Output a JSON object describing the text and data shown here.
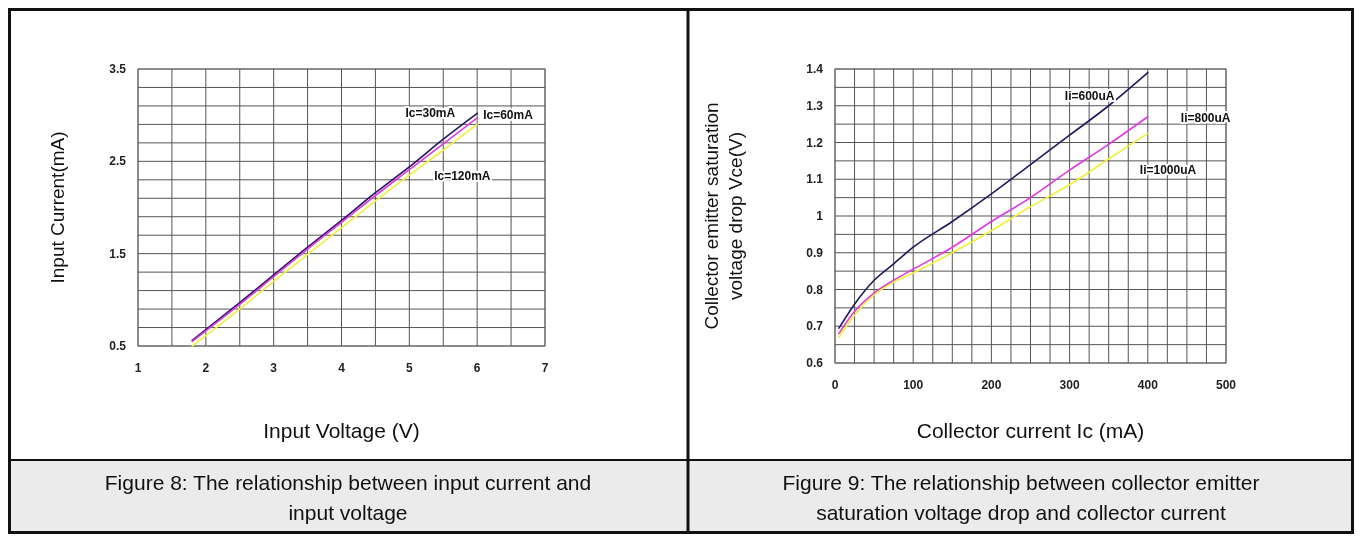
{
  "chart_data": [
    {
      "type": "line",
      "xlabel": "Input Voltage (V)",
      "ylabel": "Input Current(mA)",
      "annotations": [
        "Figure 8: The relationship between input current and input voltage"
      ],
      "xlim": [
        1,
        7
      ],
      "ylim": [
        0.5,
        3.5
      ],
      "grid": true,
      "xticks": [
        1,
        {
          "value": 1.5,
          "label": null
        },
        2,
        {
          "value": 2.5,
          "label": null
        },
        3,
        {
          "value": 3.5,
          "label": null
        },
        4,
        {
          "value": 4.5,
          "label": null
        },
        5,
        {
          "value": 5.5,
          "label": null
        },
        6,
        {
          "value": 6.5,
          "label": null
        },
        7
      ],
      "yticks": [
        0.5,
        {
          "value": 0.7,
          "label": null
        },
        {
          "value": 0.9,
          "label": null
        },
        {
          "value": 1.1,
          "label": null
        },
        {
          "value": 1.3,
          "label": null
        },
        1.5,
        {
          "value": 1.7,
          "label": null
        },
        {
          "value": 1.9,
          "label": null
        },
        {
          "value": 2.1,
          "label": null
        },
        {
          "value": 2.3,
          "label": null
        },
        2.5,
        {
          "value": 2.7,
          "label": null
        },
        {
          "value": 2.9,
          "label": null
        },
        {
          "value": 3.1,
          "label": null
        },
        {
          "value": 3.3,
          "label": null
        },
        3.5
      ],
      "series": [
        {
          "name": "Ic=30mA",
          "color": "#1f1a5e",
          "x": [
            1.8,
            2.5,
            3,
            3.5,
            4,
            4.5,
            5,
            5.5,
            6
          ],
          "values": [
            0.56,
            0.97,
            1.27,
            1.57,
            1.86,
            2.16,
            2.44,
            2.74,
            3.02
          ]
        },
        {
          "name": "Ic=60mA",
          "color": "#e03ae0",
          "x": [
            1.8,
            2.5,
            3,
            3.5,
            4,
            4.5,
            5,
            5.5,
            6
          ],
          "values": [
            0.55,
            0.95,
            1.25,
            1.55,
            1.84,
            2.13,
            2.41,
            2.69,
            2.97
          ]
        },
        {
          "name": "Ic=120mA",
          "color": "#f0f03a",
          "x": [
            1.8,
            2.5,
            3,
            3.5,
            4,
            4.5,
            5,
            5.5,
            6
          ],
          "values": [
            0.5,
            0.9,
            1.2,
            1.49,
            1.78,
            2.07,
            2.35,
            2.62,
            2.9
          ]
        }
      ]
    },
    {
      "type": "line",
      "xlabel": "Collector current Ic (mA)",
      "ylabel": "Collector emitter saturation voltage drop Vce(V)",
      "annotations": [
        "Figure 9: The relationship between collector emitter saturation voltage drop and collector current"
      ],
      "xlim": [
        0,
        500
      ],
      "ylim": [
        0.6,
        1.4
      ],
      "grid": true,
      "xticks": [
        0,
        {
          "value": 25,
          "label": null
        },
        {
          "value": 50,
          "label": null
        },
        {
          "value": 75,
          "label": null
        },
        100,
        {
          "value": 125,
          "label": null
        },
        {
          "value": 150,
          "label": null
        },
        {
          "value": 175,
          "label": null
        },
        200,
        {
          "value": 225,
          "label": null
        },
        {
          "value": 250,
          "label": null
        },
        {
          "value": 275,
          "label": null
        },
        300,
        {
          "value": 325,
          "label": null
        },
        {
          "value": 350,
          "label": null
        },
        {
          "value": 375,
          "label": null
        },
        400,
        {
          "value": 425,
          "label": null
        },
        {
          "value": 450,
          "label": null
        },
        {
          "value": 475,
          "label": null
        },
        500
      ],
      "yticks": [
        0.6,
        {
          "value": 0.65,
          "label": null
        },
        0.7,
        {
          "value": 0.75,
          "label": null
        },
        0.8,
        {
          "value": 0.85,
          "label": null
        },
        0.9,
        {
          "value": 0.95,
          "label": null
        },
        1,
        {
          "value": 1.05,
          "label": null
        },
        1.1,
        {
          "value": 1.15,
          "label": null
        },
        1.2,
        {
          "value": 1.25,
          "label": null
        },
        1.3,
        {
          "value": 1.35,
          "label": null
        },
        1.4
      ],
      "series": [
        {
          "name": "Ii=600uA",
          "color": "#1f1a5e",
          "x": [
            5,
            25,
            50,
            75,
            100,
            150,
            200,
            250,
            300,
            350,
            400
          ],
          "values": [
            0.695,
            0.76,
            0.825,
            0.87,
            0.915,
            0.985,
            1.06,
            1.14,
            1.22,
            1.3,
            1.39
          ]
        },
        {
          "name": "Ii=800uA",
          "color": "#e03ae0",
          "x": [
            5,
            25,
            50,
            75,
            100,
            150,
            200,
            250,
            300,
            350,
            400
          ],
          "values": [
            0.68,
            0.74,
            0.79,
            0.825,
            0.855,
            0.915,
            0.985,
            1.05,
            1.125,
            1.195,
            1.27
          ]
        },
        {
          "name": "Ii=1000uA",
          "color": "#f0f03a",
          "x": [
            5,
            25,
            50,
            75,
            100,
            150,
            200,
            250,
            300,
            350,
            400
          ],
          "values": [
            0.67,
            0.73,
            0.785,
            0.82,
            0.845,
            0.9,
            0.96,
            1.025,
            1.085,
            1.155,
            1.225
          ]
        }
      ]
    }
  ]
}
